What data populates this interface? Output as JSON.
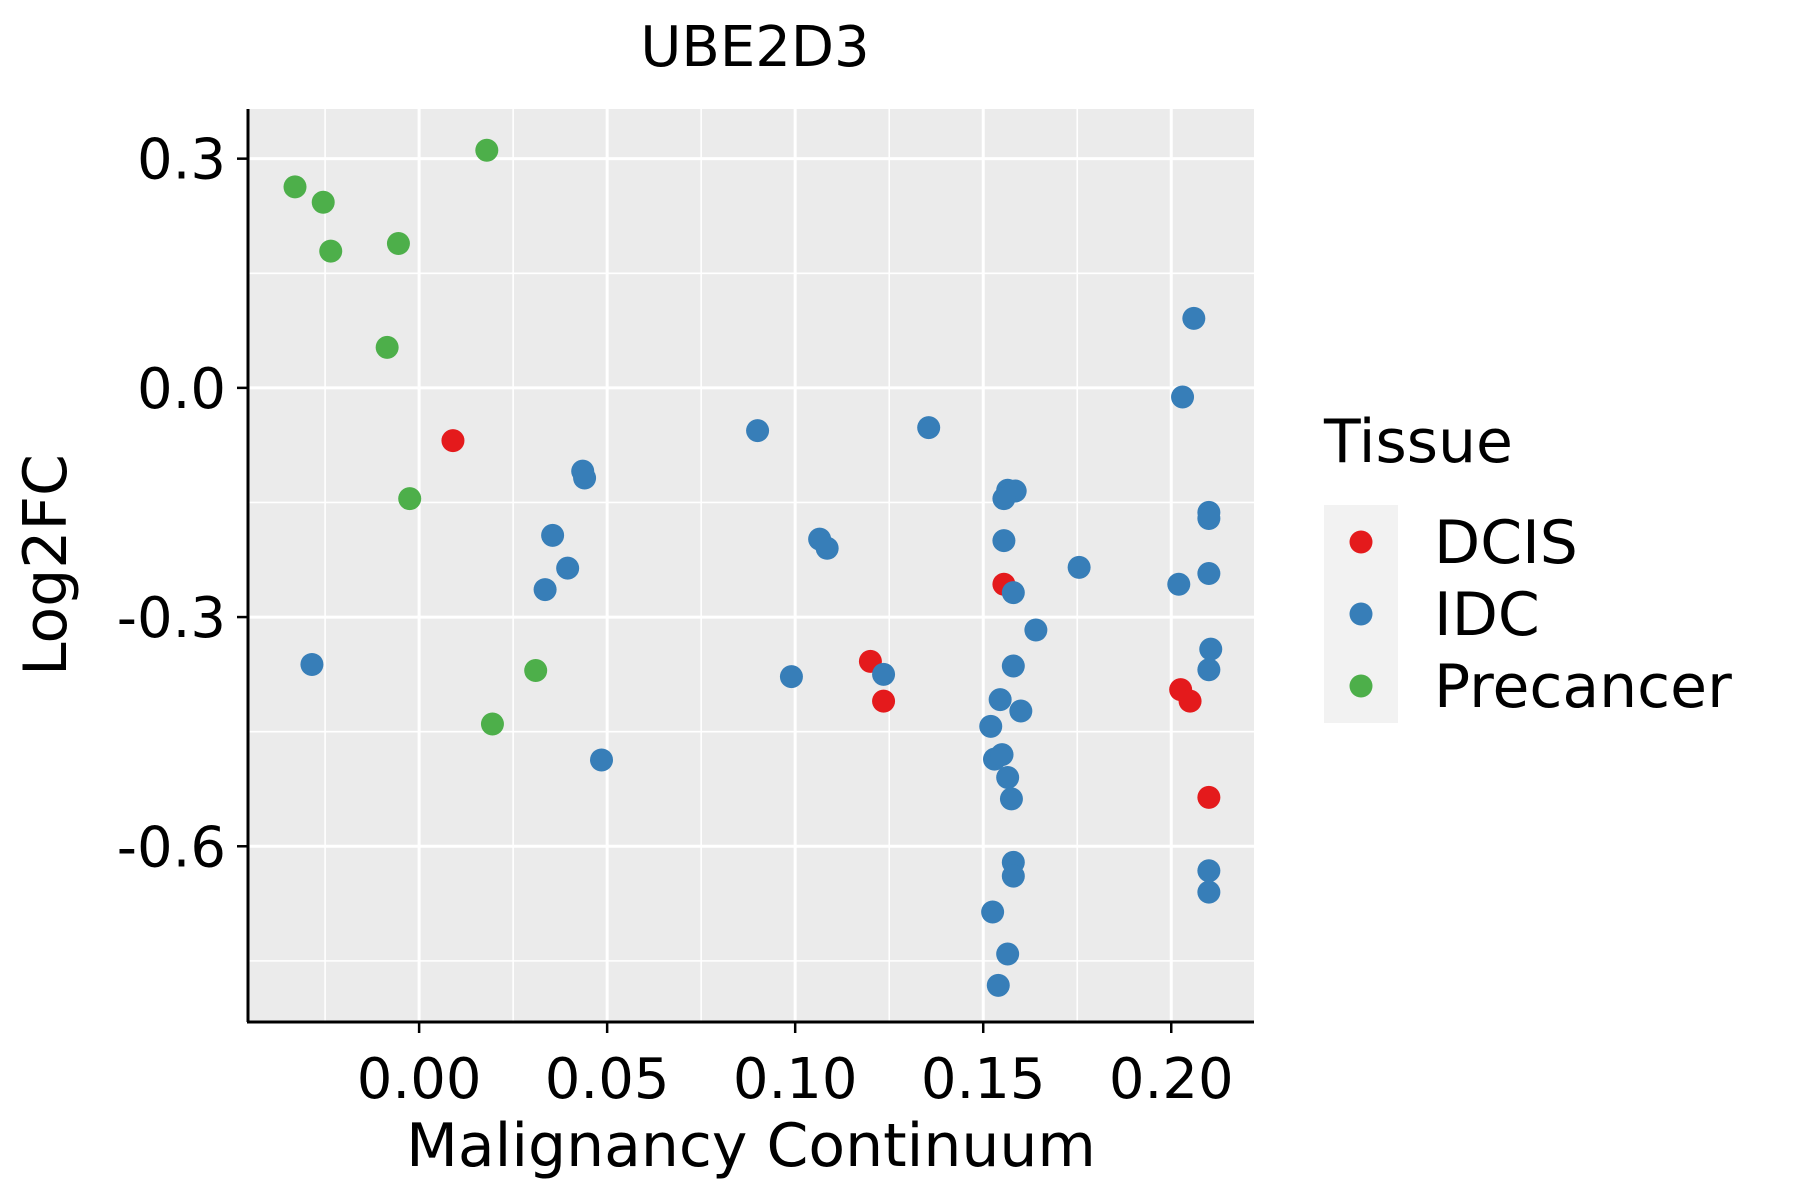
{
  "chart_data": {
    "type": "scatter",
    "title": "UBE2D3",
    "xlabel": "Malignancy Continuum",
    "ylabel": "Log2FC",
    "xlim": [
      -0.0455,
      0.222
    ],
    "ylim": [
      -0.83,
      0.365
    ],
    "x_ticks": [
      0.0,
      0.05,
      0.1,
      0.15,
      0.2
    ],
    "x_tick_labels": [
      "0.00",
      "0.05",
      "0.10",
      "0.15",
      "0.20"
    ],
    "y_ticks": [
      0.3,
      0.0,
      -0.3,
      -0.6
    ],
    "y_tick_labels": [
      "0.3",
      "0.0",
      "-0.3",
      "-0.6"
    ],
    "grid": true,
    "legend": {
      "title": "Tissue",
      "position": "right",
      "entries": [
        {
          "name": "DCIS",
          "color": "#E41A1C"
        },
        {
          "name": "IDC",
          "color": "#377EB8"
        },
        {
          "name": "Precancer",
          "color": "#4DAF4A"
        }
      ]
    },
    "series": [
      {
        "name": "Precancer",
        "color": "#4DAF4A",
        "points": [
          [
            -0.033,
            0.263
          ],
          [
            -0.0255,
            0.243
          ],
          [
            -0.0235,
            0.179
          ],
          [
            -0.0055,
            0.189
          ],
          [
            -0.0085,
            0.053
          ],
          [
            0.018,
            0.311
          ],
          [
            -0.0025,
            -0.145
          ],
          [
            0.031,
            -0.37
          ],
          [
            0.0195,
            -0.44
          ]
        ]
      },
      {
        "name": "DCIS",
        "color": "#E41A1C",
        "points": [
          [
            0.009,
            -0.069
          ],
          [
            0.12,
            -0.358
          ],
          [
            0.1235,
            -0.41
          ],
          [
            0.1555,
            -0.257
          ],
          [
            0.2025,
            -0.395
          ],
          [
            0.205,
            -0.41
          ],
          [
            0.21,
            -0.536
          ]
        ]
      },
      {
        "name": "IDC",
        "color": "#377EB8",
        "points": [
          [
            -0.0285,
            -0.362
          ],
          [
            0.0335,
            -0.264
          ],
          [
            0.0355,
            -0.193
          ],
          [
            0.0395,
            -0.236
          ],
          [
            0.0435,
            -0.109
          ],
          [
            0.044,
            -0.118
          ],
          [
            0.0485,
            -0.487
          ],
          [
            0.09,
            -0.056
          ],
          [
            0.099,
            -0.378
          ],
          [
            0.1065,
            -0.198
          ],
          [
            0.1085,
            -0.21
          ],
          [
            0.1235,
            -0.375
          ],
          [
            0.1355,
            -0.052
          ],
          [
            0.1565,
            -0.134
          ],
          [
            0.1585,
            -0.135
          ],
          [
            0.1555,
            -0.145
          ],
          [
            0.1555,
            -0.2
          ],
          [
            0.158,
            -0.268
          ],
          [
            0.164,
            -0.317
          ],
          [
            0.158,
            -0.364
          ],
          [
            0.1545,
            -0.408
          ],
          [
            0.16,
            -0.423
          ],
          [
            0.152,
            -0.443
          ],
          [
            0.153,
            -0.486
          ],
          [
            0.155,
            -0.48
          ],
          [
            0.1565,
            -0.51
          ],
          [
            0.1575,
            -0.538
          ],
          [
            0.158,
            -0.621
          ],
          [
            0.158,
            -0.639
          ],
          [
            0.1525,
            -0.686
          ],
          [
            0.1565,
            -0.741
          ],
          [
            0.154,
            -0.782
          ],
          [
            0.1755,
            -0.235
          ],
          [
            0.206,
            0.091
          ],
          [
            0.203,
            -0.012
          ],
          [
            0.202,
            -0.257
          ],
          [
            0.21,
            -0.163
          ],
          [
            0.21,
            -0.171
          ],
          [
            0.21,
            -0.243
          ],
          [
            0.2105,
            -0.342
          ],
          [
            0.21,
            -0.369
          ],
          [
            0.21,
            -0.632
          ],
          [
            0.21,
            -0.66
          ]
        ]
      }
    ]
  }
}
